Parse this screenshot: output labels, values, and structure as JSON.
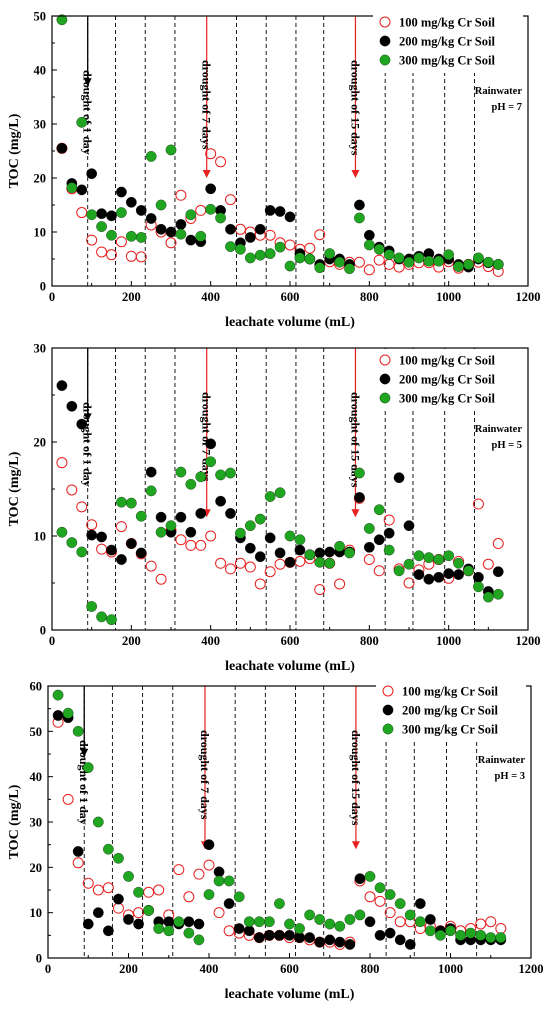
{
  "chart_data": [
    {
      "type": "scatter",
      "xlabel": "leachate volume (mL)",
      "ylabel": "TOC (mg/L)",
      "xlim": [
        0,
        1200
      ],
      "ylim": [
        0,
        50
      ],
      "xticks": [
        0,
        200,
        400,
        600,
        800,
        1000,
        1200
      ],
      "yticks": [
        0,
        10,
        20,
        30,
        40,
        50
      ],
      "legend": "top-right",
      "note_lines": [
        "Rainwater",
        "pH = 7"
      ],
      "drought_lines": [
        90,
        160,
        235,
        310,
        465,
        540,
        615,
        685,
        840,
        910,
        990,
        1065
      ],
      "arrows": [
        {
          "x": 90,
          "label": "drought of 1 day",
          "color": "#000000"
        },
        {
          "x": 390,
          "label": "drought of 7 days",
          "color": "#e8201e"
        },
        {
          "x": 765,
          "label": "drought of 15 days",
          "color": "#e8201e"
        }
      ],
      "series": [
        {
          "name": "100 mg/kg Cr Soil",
          "style": "open",
          "color": "#e8201e",
          "x": [
            25,
            50,
            75,
            100,
            125,
            150,
            175,
            200,
            225,
            250,
            275,
            300,
            325,
            350,
            375,
            400,
            425,
            450,
            475,
            500,
            525,
            550,
            575,
            600,
            625,
            650,
            675,
            700,
            725,
            750,
            775,
            800,
            825,
            850,
            875,
            900,
            925,
            950,
            975,
            1000,
            1025,
            1050,
            1075,
            1100,
            1125
          ],
          "y": [
            25.5,
            18,
            13.6,
            8.5,
            6.3,
            5.8,
            8.2,
            5.5,
            5.4,
            11.3,
            10,
            8,
            16.8,
            12.5,
            14,
            24.5,
            23,
            16,
            10.5,
            10,
            9.4,
            9.4,
            8,
            7.6,
            6.8,
            7,
            9.5,
            4.5,
            4,
            4.4,
            4.4,
            3,
            4.8,
            4,
            3.5,
            4,
            4.3,
            4.3,
            3.5,
            4.5,
            3.3,
            4,
            4.4,
            3.6,
            2.7
          ]
        },
        {
          "name": "200 mg/kg Cr Soil",
          "style": "filled",
          "color": "#000000",
          "x": [
            25,
            50,
            75,
            100,
            125,
            150,
            175,
            200,
            225,
            250,
            275,
            300,
            325,
            350,
            375,
            400,
            425,
            450,
            475,
            500,
            525,
            550,
            575,
            600,
            625,
            650,
            675,
            700,
            725,
            750,
            775,
            800,
            825,
            850,
            875,
            900,
            925,
            950,
            975,
            1000,
            1025,
            1050,
            1075,
            1100,
            1125
          ],
          "y": [
            25.5,
            19,
            17.8,
            20.8,
            13.4,
            13,
            17.4,
            15.5,
            14,
            12.5,
            10.5,
            10,
            11.4,
            8.5,
            8.2,
            18,
            14,
            10.5,
            8,
            9,
            10.5,
            14,
            13.8,
            12.8,
            6,
            5,
            4,
            5,
            5,
            4,
            15,
            9.4,
            7.2,
            6.5,
            5,
            5,
            5.5,
            6,
            5,
            5,
            4,
            3.5,
            5,
            4.3,
            4
          ]
        },
        {
          "name": "300 mg/kg Cr Soil",
          "style": "filled",
          "color": "#1fa51f",
          "x": [
            25,
            50,
            75,
            100,
            125,
            150,
            175,
            200,
            225,
            250,
            275,
            300,
            325,
            350,
            375,
            400,
            425,
            450,
            475,
            500,
            525,
            550,
            575,
            600,
            625,
            650,
            675,
            700,
            725,
            750,
            775,
            800,
            825,
            850,
            875,
            900,
            925,
            950,
            975,
            1000,
            1025,
            1050,
            1075,
            1100,
            1125
          ],
          "y": [
            49.3,
            18.2,
            30.3,
            13.2,
            11,
            9.4,
            13.6,
            9.2,
            9,
            24,
            15,
            25.2,
            9.6,
            13.2,
            9.2,
            14.2,
            12.6,
            7.3,
            6.8,
            5.2,
            5.7,
            6,
            7.2,
            3.7,
            5.2,
            5,
            3.4,
            6,
            4.4,
            3.2,
            12.6,
            7.6,
            6.8,
            5.8,
            5.2,
            4.4,
            5.2,
            4.6,
            4.6,
            5.8,
            3.6,
            4,
            5.2,
            4.4,
            4
          ]
        }
      ]
    },
    {
      "type": "scatter",
      "xlabel": "leachate volume (mL)",
      "ylabel": "TOC (mg/L)",
      "xlim": [
        0,
        1200
      ],
      "ylim": [
        0,
        30
      ],
      "xticks": [
        0,
        200,
        400,
        600,
        800,
        1000,
        1200
      ],
      "yticks": [
        0,
        10,
        20,
        30
      ],
      "legend": "top-right",
      "note_lines": [
        "Rainwater",
        "pH = 5"
      ],
      "drought_lines": [
        90,
        160,
        235,
        310,
        465,
        540,
        615,
        685,
        840,
        910,
        990,
        1065
      ],
      "arrows": [
        {
          "x": 90,
          "label": "drought of 1 day",
          "color": "#000000"
        },
        {
          "x": 390,
          "label": "drought of 7 days",
          "color": "#e8201e"
        },
        {
          "x": 765,
          "label": "drought of 15 days",
          "color": "#e8201e"
        }
      ],
      "series": [
        {
          "name": "100 mg/kg Cr Soil",
          "style": "open",
          "color": "#e8201e",
          "x": [
            25,
            50,
            75,
            100,
            125,
            150,
            175,
            200,
            225,
            250,
            275,
            300,
            325,
            350,
            375,
            400,
            425,
            450,
            475,
            500,
            525,
            550,
            575,
            600,
            625,
            650,
            675,
            700,
            725,
            750,
            775,
            800,
            825,
            850,
            875,
            900,
            925,
            950,
            975,
            1000,
            1025,
            1050,
            1075,
            1100,
            1125
          ],
          "y": [
            17.8,
            14.9,
            13.1,
            11.2,
            8.6,
            8.3,
            11,
            9.2,
            8.1,
            6.8,
            5.4,
            10.6,
            9.6,
            9,
            9,
            10,
            7.1,
            6.5,
            7.1,
            6.7,
            4.9,
            6.2,
            7,
            7.2,
            7.3,
            7.6,
            4.3,
            7.1,
            4.9,
            8.5,
            14,
            7.5,
            6.3,
            11.7,
            6.5,
            5,
            6.4,
            7,
            7.5,
            5.5,
            7.3,
            6.3,
            13.4,
            7,
            9.2
          ]
        },
        {
          "name": "200 mg/kg Cr Soil",
          "style": "filled",
          "color": "#000000",
          "x": [
            25,
            50,
            75,
            100,
            125,
            150,
            175,
            200,
            225,
            250,
            275,
            300,
            325,
            350,
            375,
            400,
            425,
            450,
            475,
            500,
            525,
            550,
            575,
            600,
            625,
            650,
            675,
            700,
            725,
            750,
            775,
            800,
            825,
            850,
            875,
            900,
            925,
            950,
            975,
            1000,
            1025,
            1050,
            1075,
            1100,
            1125
          ],
          "y": [
            26,
            23.8,
            21.9,
            10.1,
            9.9,
            8.5,
            7.5,
            9.2,
            8.2,
            16.8,
            12,
            10.4,
            12,
            10.4,
            12.4,
            19.8,
            13.7,
            12.4,
            9.8,
            8.7,
            7.8,
            9.8,
            8.2,
            7.2,
            8.5,
            8,
            8.2,
            8.3,
            8.3,
            8.3,
            14.1,
            8.8,
            9.6,
            10.3,
            16.2,
            11.1,
            5.9,
            5.4,
            5.6,
            6,
            5.9,
            6.5,
            5.6,
            4.1,
            6.2
          ]
        },
        {
          "name": "300 mg/kg Cr Soil",
          "style": "filled",
          "color": "#1fa51f",
          "x": [
            25,
            50,
            75,
            100,
            125,
            150,
            175,
            200,
            225,
            250,
            275,
            300,
            325,
            350,
            375,
            400,
            425,
            450,
            475,
            500,
            525,
            550,
            575,
            600,
            625,
            650,
            675,
            700,
            725,
            750,
            775,
            800,
            825,
            850,
            875,
            900,
            925,
            950,
            975,
            1000,
            1025,
            1050,
            1075,
            1100,
            1125
          ],
          "y": [
            10.4,
            9.3,
            8.3,
            2.5,
            1.4,
            1.1,
            13.6,
            13.5,
            12.1,
            14.8,
            10.4,
            11.1,
            16.8,
            15.5,
            16.3,
            17.9,
            16.5,
            16.7,
            10.3,
            11.1,
            11.8,
            14.2,
            14.6,
            10,
            9.6,
            8,
            7.2,
            7.1,
            8.9,
            8.2,
            16.7,
            10.8,
            12.8,
            8.5,
            6.3,
            7,
            7.9,
            7.7,
            7.5,
            7.9,
            7.1,
            6.3,
            4.6,
            3.5,
            3.8
          ]
        }
      ]
    },
    {
      "type": "scatter",
      "xlabel": "leachate volume (mL)",
      "ylabel": "TOC (mg/L)",
      "xlim": [
        0,
        1200
      ],
      "ylim": [
        0,
        60
      ],
      "xticks": [
        0,
        200,
        400,
        600,
        800,
        1000,
        1200
      ],
      "yticks": [
        0,
        10,
        20,
        30,
        40,
        50,
        60
      ],
      "legend": "top-right",
      "note_lines": [
        "Rainwater",
        "pH = 3"
      ],
      "drought_lines": [
        90,
        160,
        235,
        310,
        465,
        540,
        615,
        685,
        840,
        910,
        990,
        1065
      ],
      "arrows": [
        {
          "x": 90,
          "label": "drought of 1 day",
          "color": "#000000"
        },
        {
          "x": 390,
          "label": "drought of 7 days",
          "color": "#e8201e"
        },
        {
          "x": 765,
          "label": "drought of 15 days",
          "color": "#e8201e"
        }
      ],
      "series": [
        {
          "name": "100 mg/kg Cr Soil",
          "style": "open",
          "color": "#e8201e",
          "x": [
            25,
            50,
            75,
            100,
            125,
            150,
            175,
            200,
            225,
            250,
            275,
            300,
            325,
            350,
            375,
            400,
            425,
            450,
            475,
            500,
            525,
            550,
            575,
            600,
            625,
            650,
            675,
            700,
            725,
            750,
            775,
            800,
            825,
            850,
            875,
            900,
            925,
            950,
            975,
            1000,
            1025,
            1050,
            1075,
            1100,
            1125
          ],
          "y": [
            52,
            35,
            21,
            16.5,
            15,
            15.5,
            11,
            9.5,
            10,
            14.5,
            15,
            9.5,
            19.5,
            13.5,
            18.5,
            20.5,
            10,
            6,
            5.5,
            5,
            4.5,
            5,
            5,
            4.5,
            4.5,
            4,
            3.5,
            3.5,
            3,
            3.5,
            17,
            13.5,
            12.5,
            10,
            8,
            8,
            6.5,
            7,
            6,
            7,
            6,
            6.5,
            7.5,
            8,
            6.5
          ]
        },
        {
          "name": "200 mg/kg Cr Soil",
          "style": "filled",
          "color": "#000000",
          "x": [
            25,
            50,
            75,
            100,
            125,
            150,
            175,
            200,
            225,
            250,
            275,
            300,
            325,
            350,
            375,
            400,
            425,
            450,
            475,
            500,
            525,
            550,
            575,
            600,
            625,
            650,
            675,
            700,
            725,
            750,
            775,
            800,
            825,
            850,
            875,
            900,
            925,
            950,
            975,
            1000,
            1025,
            1050,
            1075,
            1100,
            1125
          ],
          "y": [
            53.5,
            53,
            23.5,
            7.5,
            10,
            6,
            13,
            8.5,
            7.5,
            10.5,
            8,
            8,
            7.5,
            8,
            7.5,
            25,
            19,
            12,
            6.5,
            6,
            4.5,
            5,
            5,
            5,
            4.5,
            4.5,
            3.5,
            4,
            3.5,
            3,
            17.5,
            8,
            5,
            5.5,
            4,
            3,
            12,
            8.5,
            6,
            6.5,
            4,
            4,
            4,
            4,
            4
          ]
        },
        {
          "name": "300 mg/kg Cr Soil",
          "style": "filled",
          "color": "#1fa51f",
          "x": [
            25,
            50,
            75,
            100,
            125,
            150,
            175,
            200,
            225,
            250,
            275,
            300,
            325,
            350,
            375,
            400,
            425,
            450,
            475,
            500,
            525,
            550,
            575,
            600,
            625,
            650,
            675,
            700,
            725,
            750,
            775,
            800,
            825,
            850,
            875,
            900,
            925,
            950,
            975,
            1000,
            1025,
            1050,
            1075,
            1100,
            1125
          ],
          "y": [
            58,
            54,
            50,
            42,
            30,
            24,
            22,
            18,
            14.5,
            10.5,
            6.5,
            6,
            8,
            5.5,
            4,
            14,
            17,
            17,
            13.5,
            8,
            8,
            8,
            12,
            7.5,
            6.5,
            9.5,
            8.5,
            7.5,
            7,
            8.5,
            9.5,
            18,
            15.5,
            14,
            12,
            9.5,
            8,
            6,
            5,
            6,
            5,
            5.5,
            5,
            4.5,
            4.5
          ]
        }
      ]
    }
  ]
}
